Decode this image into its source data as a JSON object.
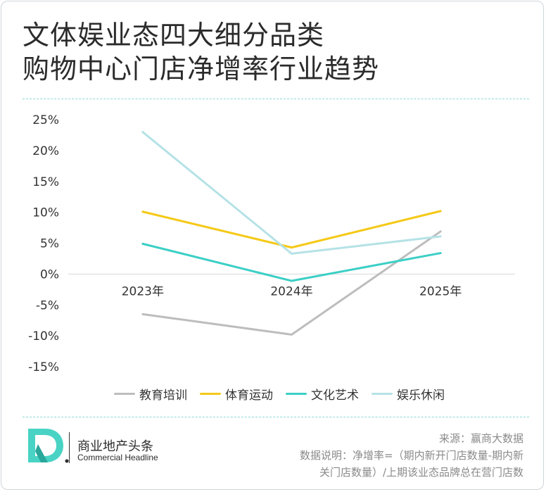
{
  "title": {
    "line1": "文体娱业态四大细分品类",
    "line2": "购物中心门店净增率行业趋势"
  },
  "chart_data": {
    "type": "line",
    "title": "文体娱业态四大细分品类购物中心门店净增率行业趋势",
    "categories": [
      "2023年",
      "2024年",
      "2025年"
    ],
    "y_ticks": [
      25,
      20,
      15,
      10,
      5,
      0,
      -5,
      -10,
      -15
    ],
    "y_tick_labels": [
      "25%",
      "20%",
      "15%",
      "10%",
      "5%",
      "0%",
      "-5%",
      "-10%",
      "-15%"
    ],
    "ylim": [
      -15,
      25
    ],
    "unit": "%",
    "legend_position": "bottom",
    "series": [
      {
        "name": "教育培训",
        "values": [
          -6.5,
          -9.8,
          6.9
        ],
        "color": "#bdbdbd"
      },
      {
        "name": "体育运动",
        "values": [
          10.1,
          4.3,
          10.2
        ],
        "color": "#f5c918"
      },
      {
        "name": "文化艺术",
        "values": [
          4.9,
          -1.1,
          3.4
        ],
        "color": "#3ccfc6"
      },
      {
        "name": "娱乐休闲",
        "values": [
          23.0,
          3.3,
          6.1
        ],
        "color": "#b5e2e6"
      }
    ]
  },
  "footer": {
    "brand_cn": "商业地产头条",
    "brand_en": "Commercial Headline",
    "source": "来源：赢商大数据",
    "note_line1": "数据说明：净增率=（期内新开门店数量-期内新",
    "note_line2": "关门店数量）/上期该业态品牌总在营门店数"
  }
}
